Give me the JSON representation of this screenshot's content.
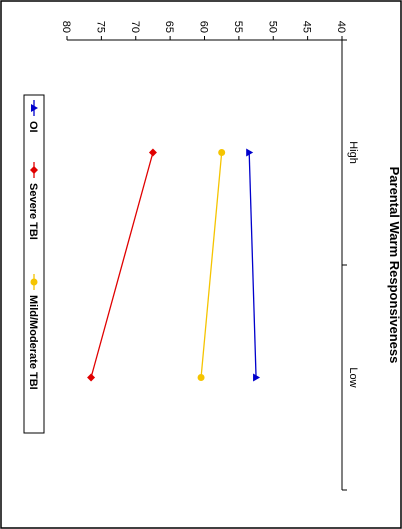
{
  "chart_data": {
    "type": "line",
    "title": "Parental Warm Responsiveness",
    "categories": [
      "High",
      "Low"
    ],
    "ylim": [
      40,
      80
    ],
    "yticks": [
      40,
      45,
      50,
      55,
      60,
      65,
      70,
      75,
      80
    ],
    "series": [
      {
        "name": "OI",
        "values": [
          53.5,
          52.5
        ],
        "color": "#0000cc",
        "marker": "triangle"
      },
      {
        "name": "Severe TBI",
        "values": [
          67.5,
          76.5
        ],
        "color": "#e00000",
        "marker": "diamond"
      },
      {
        "name": "Mild/Moderate TBI",
        "values": [
          57.5,
          60.5
        ],
        "color": "#f5c400",
        "marker": "circle"
      }
    ],
    "legend_position": "bottom",
    "orientation": "rotated-90-clockwise"
  }
}
